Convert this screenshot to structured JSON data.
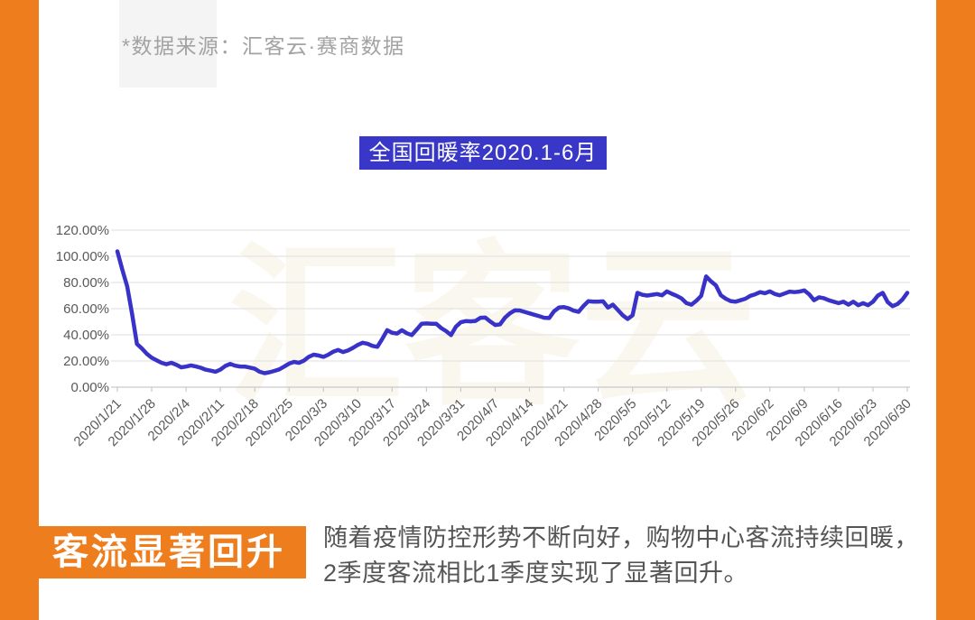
{
  "header": {
    "source_note": "*数据来源：汇客云·赛商数据"
  },
  "watermark_text": "汇客云",
  "chart_data": {
    "type": "line",
    "title": "全国回暖率2020.1-6月",
    "x_unit": "day",
    "x_range": [
      "2020/1/21",
      "2020/6/30"
    ],
    "tick_labels": [
      "2020/1/21",
      "2020/1/28",
      "2020/2/4",
      "2020/2/11",
      "2020/2/18",
      "2020/2/25",
      "2020/3/3",
      "2020/3/10",
      "2020/3/17",
      "2020/3/24",
      "2020/3/31",
      "2020/4/7",
      "2020/4/14",
      "2020/4/21",
      "2020/4/28",
      "2020/5/5",
      "2020/5/12",
      "2020/5/19",
      "2020/5/26",
      "2020/6/2",
      "2020/6/9",
      "2020/6/16",
      "2020/6/23",
      "2020/6/30"
    ],
    "tick_every_n_points": 7,
    "values": [
      103.8,
      90.0,
      77.0,
      56.0,
      33.0,
      29.5,
      25.5,
      22.5,
      20.5,
      18.6,
      17.5,
      18.6,
      17.2,
      15.2,
      15.7,
      16.6,
      15.8,
      14.8,
      13.4,
      12.6,
      11.8,
      13.4,
      16.2,
      17.8,
      16.4,
      15.8,
      15.7,
      15.0,
      14.1,
      11.8,
      10.7,
      11.4,
      12.4,
      13.6,
      15.7,
      18.0,
      19.3,
      18.6,
      20.2,
      23.2,
      24.8,
      24.2,
      23.2,
      24.8,
      27.1,
      28.4,
      26.8,
      28.0,
      30.0,
      32.3,
      33.9,
      33.2,
      31.5,
      30.8,
      37.0,
      43.5,
      41.6,
      41.0,
      43.5,
      41.2,
      39.8,
      44.0,
      48.4,
      48.7,
      48.5,
      48.4,
      45.2,
      42.8,
      39.8,
      46.2,
      49.6,
      50.5,
      50.3,
      50.6,
      53.0,
      53.2,
      50.2,
      47.5,
      48.0,
      53.0,
      56.4,
      58.7,
      58.6,
      57.5,
      56.4,
      55.3,
      54.2,
      53.0,
      52.8,
      58.0,
      60.8,
      61.2,
      60.2,
      58.5,
      57.6,
      62.0,
      65.7,
      65.4,
      65.3,
      65.6,
      60.8,
      63.0,
      59.0,
      55.0,
      52.1,
      55.0,
      72.1,
      70.6,
      70.0,
      70.6,
      71.2,
      70.2,
      73.2,
      71.4,
      69.8,
      67.8,
      64.2,
      63.0,
      66.0,
      69.8,
      84.6,
      80.8,
      77.8,
      70.2,
      67.6,
      65.8,
      65.3,
      66.4,
      67.6,
      69.8,
      71.0,
      72.6,
      71.8,
      73.2,
      71.2,
      70.2,
      71.6,
      73.0,
      72.6,
      73.0,
      73.9,
      71.0,
      66.4,
      68.7,
      68.0,
      66.4,
      65.3,
      64.2,
      65.3,
      63.0,
      65.3,
      62.6,
      64.2,
      62.6,
      65.3,
      70.0,
      72.1,
      65.0,
      61.9,
      63.5,
      67.0,
      72.1
    ],
    "yticks": [
      0,
      20,
      40,
      60,
      80,
      100,
      120
    ],
    "ytick_labels": [
      "0.00%",
      "20.00%",
      "40.00%",
      "60.00%",
      "80.00%",
      "100.00%",
      "120.00%"
    ],
    "ylim": [
      0,
      120
    ],
    "grid": true,
    "legend": "none",
    "line_color": "#3932C8"
  },
  "footer": {
    "headline": "客流显著回升",
    "description_line1": "随着疫情防控形势不断向好，购物中心客流持续回暖，",
    "description_line2": "2季度客流相比1季度实现了显著回升。"
  },
  "colors": {
    "accent_orange": "#EE7D1E",
    "title_bg_blue": "#3837C7",
    "line_blue": "#3932C8",
    "axis_text_gray": "#595959",
    "source_text_gray": "#a3a3a3"
  }
}
